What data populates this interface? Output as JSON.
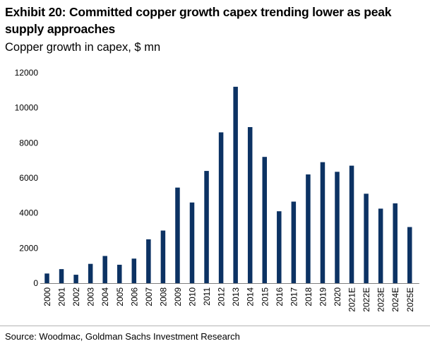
{
  "title": "Exhibit 20: Committed copper growth capex trending lower as peak supply approaches",
  "subtitle": "Copper growth in capex, $ mn",
  "source": "Source: Woodmac, Goldman Sachs Investment Research",
  "chart_data": {
    "type": "bar",
    "categories": [
      "2000",
      "2001",
      "2002",
      "2003",
      "2004",
      "2005",
      "2006",
      "2007",
      "2008",
      "2009",
      "2010",
      "2011",
      "2012",
      "2013",
      "2014",
      "2015",
      "2016",
      "2017",
      "2018",
      "2019",
      "2020",
      "2021E",
      "2022E",
      "2023E",
      "2024E",
      "2025E"
    ],
    "values": [
      550,
      800,
      480,
      1100,
      1550,
      1050,
      1400,
      2500,
      3000,
      5450,
      4600,
      6400,
      8600,
      11200,
      8900,
      7200,
      4100,
      4650,
      6200,
      6900,
      6350,
      6700,
      5100,
      4250,
      4550,
      3200
    ],
    "yticks": [
      0,
      2000,
      4000,
      6000,
      8000,
      10000,
      12000
    ],
    "ylim": [
      0,
      12000
    ],
    "xlabel": "",
    "ylabel": "",
    "grid": false,
    "bar_color": "#0c3263"
  }
}
